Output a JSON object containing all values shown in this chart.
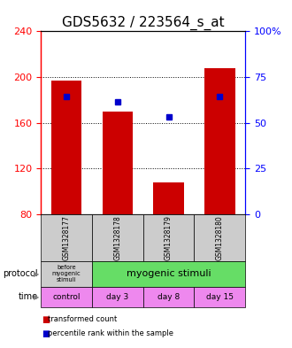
{
  "title": "GDS5632 / 223564_s_at",
  "samples": [
    "GSM1328177",
    "GSM1328178",
    "GSM1328179",
    "GSM1328180"
  ],
  "bar_values": [
    197,
    170,
    108,
    208
  ],
  "bar_bottom": 80,
  "percentile_values": [
    183,
    178,
    165,
    183
  ],
  "ylim_left": [
    80,
    240
  ],
  "ylim_right": [
    0,
    100
  ],
  "yticks_left": [
    80,
    120,
    160,
    200,
    240
  ],
  "yticks_right": [
    0,
    25,
    50,
    75,
    100
  ],
  "bar_color": "#cc0000",
  "percentile_color": "#0000cc",
  "sample_box_color": "#cccccc",
  "protocol_col0_color": "#cccccc",
  "protocol_col13_color": "#66dd66",
  "time_color": "#ee88ee",
  "title_fontsize": 11,
  "tick_fontsize": 8,
  "bar_width": 0.6,
  "legend_red_label": "transformed count",
  "legend_blue_label": "percentile rank within the sample"
}
